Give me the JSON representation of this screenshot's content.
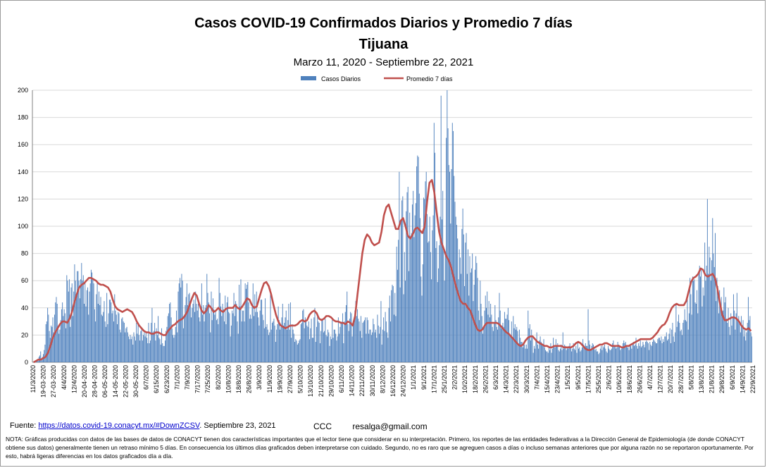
{
  "title": "Casos COVID-19 Confirmados Diarios y Promedio 7 días",
  "subtitle": "Tijuana",
  "date_range": "Marzo 11, 2020 - Septiembre  22, 2021",
  "footer": {
    "source_label": "Fuente:",
    "source_link": "https://datos.covid-19.conacyt.mx/#DownZCSV",
    "source_date": ". Septiembre 23, 2021",
    "author": "CCC",
    "email": "resalga@gmail.com",
    "note": "NOTA: Gráficas producidas con datos de las bases de datos de CONACYT tienen dos características importantes que el lector tiene que considerar en su interpretación. Primero, los reportes de las entidades federativas a la Dirección General de Epidemiología (de donde CONACYT obtiene sus datos) generalmente tienen un retraso mínimo 5 días. En consecuencia los últimos días graficados deben interpretarse con cuidado. Segundo, no es raro que se agreguen casos a días o incluso semanas anteriores que por alguna razón no se reportaron oportunamente. Por esto, habrá ligeras diferencias en los datos graficados día a día."
  },
  "chart_data": {
    "type": "bar+line",
    "x_start": "2020-03-11",
    "x_end": "2021-09-22",
    "ylim": [
      0,
      200
    ],
    "yticks": [
      0,
      20,
      40,
      60,
      80,
      100,
      120,
      140,
      160,
      180,
      200
    ],
    "xtick_labels": [
      "11/3/2020",
      "19-03-2020",
      "27-03-2020",
      "4/4/2020",
      "12/4/2020",
      "20-04-2020",
      "28-04-2020",
      "06-05-2020",
      "14-05-2020",
      "22-05-2020",
      "30-05-2020",
      "6/7/2020",
      "6/15/2020",
      "6/23/2020",
      "7/1/2020",
      "7/9/2020",
      "7/17/2020",
      "7/25/2020",
      "8/2/2020",
      "10/8/2020",
      "18/8/2020",
      "26/8/2020",
      "3/9/2020",
      "11/9/2020",
      "19/9/2020",
      "27/9/2020",
      "5/10/2020",
      "13/10/2020",
      "21/10/2020",
      "29/10/2020",
      "6/11/2020",
      "14/11/2020",
      "22/11/2020",
      "30/11/2020",
      "8/12/2020",
      "16/12/2020",
      "24/12/2020",
      "1/1/2021",
      "9/1/2021",
      "17/1/2021",
      "25/1/2021",
      "2/2/2021",
      "10/2/2021",
      "18/2/2021",
      "26/2/2021",
      "6/3/2021",
      "14/3/2021",
      "22/3/2021",
      "30/3/2021",
      "7/4/2021",
      "15/4/2021",
      "23/4/2021",
      "1/5/2021",
      "9/5/2021",
      "17/5/2021",
      "25/5/2021",
      "2/6/2021",
      "10/6/2021",
      "18/6/2021",
      "26/6/2021",
      "4/7/2021",
      "12/7/2021",
      "20/7/2021",
      "28/7/2021",
      "5/8/2021",
      "13/8/2021",
      "21/8/2021",
      "29/8/2021",
      "6/9/2021",
      "14/9/2021",
      "22/9/2021"
    ],
    "legend": [
      "Casos Diarios",
      "Promedio 7 días"
    ],
    "legend_position": "top-center",
    "colors": {
      "bars": "#4f81bd",
      "line": "#c0504d",
      "grid": "#d9d9d9"
    },
    "series": [
      {
        "name": "Promedio 7 días",
        "values": [
          0,
          1,
          2,
          2,
          3,
          4,
          7,
          12,
          18,
          22,
          25,
          28,
          30,
          30,
          29,
          32,
          37,
          44,
          50,
          55,
          57,
          58,
          60,
          62,
          62,
          61,
          60,
          58,
          57,
          57,
          56,
          55,
          52,
          46,
          41,
          39,
          38,
          37,
          38,
          39,
          38,
          37,
          34,
          30,
          27,
          25,
          23,
          22,
          22,
          21,
          21,
          22,
          22,
          21,
          20,
          20,
          23,
          25,
          27,
          28,
          30,
          31,
          32,
          34,
          37,
          42,
          47,
          51,
          49,
          43,
          38,
          36,
          38,
          42,
          40,
          37,
          38,
          40,
          38,
          37,
          39,
          40,
          40,
          40,
          42,
          40,
          39,
          41,
          44,
          47,
          46,
          42,
          40,
          41,
          47,
          53,
          58,
          59,
          56,
          50,
          42,
          35,
          30,
          27,
          26,
          25,
          26,
          27,
          27,
          27,
          28,
          30,
          31,
          30,
          31,
          35,
          37,
          38,
          36,
          32,
          31,
          32,
          34,
          34,
          33,
          31,
          30,
          30,
          29,
          29,
          28,
          30,
          29,
          27,
          34,
          50,
          65,
          80,
          90,
          94,
          92,
          88,
          86,
          87,
          88,
          96,
          108,
          114,
          116,
          110,
          104,
          98,
          98,
          104,
          106,
          100,
          93,
          91,
          94,
          98,
          99,
          97,
          95,
          100,
          118,
          132,
          134,
          125,
          110,
          96,
          88,
          83,
          78,
          75,
          70,
          63,
          56,
          50,
          45,
          43,
          43,
          40,
          38,
          33,
          28,
          24,
          23,
          24,
          27,
          29,
          29,
          29,
          29,
          29,
          28,
          26,
          24,
          22,
          21,
          19,
          17,
          15,
          13,
          12,
          13,
          16,
          18,
          19,
          19,
          17,
          15,
          14,
          13,
          12,
          12,
          11,
          11,
          12,
          12,
          12,
          12,
          11,
          11,
          11,
          11,
          12,
          14,
          15,
          14,
          12,
          10,
          9,
          9,
          10,
          11,
          12,
          13,
          13,
          14,
          14,
          13,
          12,
          12,
          12,
          12,
          11,
          11,
          12,
          12,
          13,
          14,
          15,
          16,
          17,
          17,
          17,
          17,
          17,
          18,
          20,
          22,
          25,
          27,
          28,
          31,
          36,
          40,
          42,
          43,
          42,
          42,
          42,
          45,
          52,
          59,
          62,
          63,
          65,
          69,
          68,
          64,
          63,
          64,
          65,
          62,
          54,
          44,
          35,
          31,
          31,
          32,
          33,
          33,
          32,
          30,
          27,
          25,
          24,
          25,
          23
        ]
      },
      {
        "name": "Casos Diarios",
        "values": [
          0,
          0,
          1,
          0,
          1,
          2,
          1,
          4,
          5,
          8,
          2,
          4,
          6,
          9,
          13,
          28,
          30,
          40,
          35,
          23,
          18,
          27,
          26,
          33,
          22,
          35,
          44,
          48,
          43,
          27,
          21,
          24,
          31,
          39,
          44,
          34,
          39,
          36,
          25,
          64,
          60,
          52,
          61,
          26,
          55,
          58,
          34,
          52,
          72,
          60,
          49,
          67,
          67,
          60,
          47,
          61,
          73,
          60,
          64,
          43,
          59,
          41,
          53,
          55,
          35,
          52,
          58,
          68,
          66,
          61,
          58,
          39,
          30,
          50,
          58,
          43,
          52,
          42,
          48,
          35,
          34,
          37,
          45,
          30,
          26,
          51,
          28,
          36,
          46,
          46,
          44,
          36,
          38,
          30,
          50,
          38,
          35,
          28,
          37,
          36,
          24,
          22,
          32,
          33,
          30,
          29,
          22,
          25,
          26,
          22,
          19,
          17,
          20,
          17,
          19,
          13,
          22,
          19,
          16,
          29,
          21,
          28,
          20,
          16,
          23,
          25,
          16,
          20,
          22,
          19,
          22,
          18,
          14,
          29,
          14,
          16,
          29,
          40,
          22,
          23,
          29,
          16,
          25,
          20,
          34,
          18,
          17,
          13,
          25,
          14,
          12,
          12,
          16,
          23,
          26,
          34,
          36,
          43,
          44,
          33,
          25,
          20,
          18,
          20,
          26,
          38,
          22,
          52,
          58,
          62,
          55,
          65,
          60,
          25,
          35,
          42,
          48,
          58,
          42,
          50,
          51,
          45,
          33,
          40,
          43,
          46,
          37,
          52,
          43,
          38,
          43,
          33,
          30,
          40,
          58,
          35,
          42,
          30,
          40,
          42,
          65,
          51,
          44,
          36,
          22,
          52,
          31,
          47,
          39,
          35,
          38,
          31,
          32,
          28,
          62,
          51,
          41,
          34,
          43,
          39,
          30,
          49,
          28,
          44,
          48,
          37,
          36,
          19,
          27,
          38,
          36,
          51,
          34,
          45,
          43,
          30,
          21,
          57,
          41,
          61,
          30,
          38,
          38,
          30,
          58,
          54,
          57,
          59,
          44,
          32,
          35,
          32,
          41,
          58,
          34,
          50,
          37,
          52,
          37,
          33,
          27,
          38,
          46,
          46,
          35,
          31,
          25,
          47,
          26,
          28,
          24,
          20,
          22,
          54,
          24,
          29,
          30,
          32,
          27,
          15,
          24,
          28,
          41,
          31,
          24,
          26,
          33,
          43,
          27,
          29,
          33,
          38,
          24,
          31,
          43,
          24,
          44,
          18,
          28,
          24,
          21,
          15,
          17,
          16,
          13,
          14,
          16,
          17,
          28,
          29,
          38,
          39,
          25,
          33,
          31,
          27,
          26,
          30,
          17,
          25,
          32,
          18,
          18,
          33,
          40,
          15,
          26,
          34,
          30,
          29,
          14,
          23,
          32,
          32,
          22,
          23,
          32,
          20,
          19,
          24,
          22,
          12,
          19,
          17,
          31,
          18,
          24,
          24,
          21,
          16,
          19,
          33,
          21,
          26,
          30,
          29,
          36,
          14,
          30,
          37,
          42,
          52,
          28,
          23,
          32,
          37,
          36,
          19,
          28,
          29,
          38,
          45,
          34,
          39,
          32,
          30,
          23,
          34,
          18,
          29,
          30,
          31,
          33,
          21,
          33,
          31,
          21,
          24,
          24,
          20,
          22,
          32,
          28,
          22,
          24,
          18,
          35,
          27,
          21,
          26,
          45,
          13,
          24,
          33,
          23,
          37,
          30,
          22,
          18,
          40,
          49,
          30,
          53,
          57,
          56,
          35,
          51,
          34,
          85,
          68,
          90,
          140,
          55,
          105,
          119,
          122,
          50,
          81,
          60,
          111,
          125,
          129,
          67,
          110,
          93,
          95,
          116,
          126,
          92,
          108,
          117,
          144,
          152,
          151,
          124,
          106,
          63,
          49,
          72,
          121,
          120,
          133,
          140,
          109,
          88,
          89,
          107,
          81,
          61,
          97,
          108,
          176,
          154,
          84,
          89,
          59,
          69,
          86,
          107,
          196,
          105,
          126,
          82,
          60,
          81,
          165,
          200,
          172,
          145,
          140,
          102,
          142,
          176,
          170,
          137,
          118,
          107,
          101,
          91,
          61,
          83,
          77,
          65,
          98,
          113,
          94,
          56,
          88,
          95,
          65,
          83,
          49,
          78,
          66,
          69,
          80,
          45,
          57,
          68,
          78,
          73,
          62,
          38,
          31,
          60,
          43,
          34,
          21,
          26,
          38,
          49,
          40,
          52,
          35,
          45,
          33,
          43,
          35,
          26,
          23,
          29,
          42,
          31,
          26,
          24,
          33,
          51,
          38,
          25,
          27,
          29,
          26,
          37,
          32,
          32,
          35,
          40,
          31,
          21,
          20,
          30,
          17,
          34,
          25,
          28,
          24,
          26,
          23,
          14,
          24,
          18,
          15,
          15,
          11,
          14,
          13,
          10,
          13,
          10,
          38,
          25,
          28,
          16,
          24,
          18,
          7,
          12,
          10,
          16,
          22,
          13,
          10,
          16,
          19,
          15,
          14,
          12,
          17,
          11,
          9,
          8,
          8,
          7,
          11,
          9,
          14,
          7,
          10,
          18,
          12,
          11,
          17,
          12,
          14,
          9,
          8,
          10,
          13,
          9,
          22,
          10,
          13,
          12,
          9,
          11,
          10,
          12,
          14,
          11,
          8,
          10,
          14,
          10,
          9,
          12,
          7,
          14,
          10,
          11,
          8,
          9,
          11,
          17,
          13,
          12,
          14,
          12,
          12,
          39,
          16,
          13,
          9,
          12,
          14,
          13,
          10,
          9,
          10,
          8,
          8,
          6,
          7,
          10,
          12,
          9,
          12,
          11,
          13,
          10,
          8,
          7,
          12,
          10,
          9,
          9,
          10,
          14,
          16,
          12,
          12,
          10,
          11,
          15,
          13,
          12,
          9,
          10,
          11,
          14,
          16,
          14,
          15,
          12,
          11,
          11,
          9,
          13,
          12,
          10,
          14,
          15,
          12,
          13,
          18,
          12,
          10,
          14,
          12,
          16,
          11,
          12,
          15,
          13,
          11,
          15,
          16,
          15,
          14,
          9,
          15,
          13,
          12,
          15,
          17,
          16,
          15,
          14,
          14,
          17,
          18,
          18,
          16,
          19,
          14,
          17,
          15,
          19,
          19,
          22,
          16,
          17,
          21,
          25,
          14,
          24,
          29,
          19,
          15,
          22,
          42,
          26,
          30,
          35,
          29,
          23,
          24,
          20,
          29,
          31,
          39,
          31,
          30,
          47,
          24,
          36,
          62,
          50,
          35,
          63,
          60,
          61,
          44,
          43,
          53,
          36,
          66,
          71,
          63,
          68,
          41,
          55,
          49,
          88,
          60,
          71,
          120,
          65,
          85,
          77,
          60,
          75,
          106,
          80,
          70,
          95,
          45,
          62,
          56,
          36,
          53,
          43,
          48,
          34,
          38,
          55,
          44,
          48,
          32,
          29,
          40,
          26,
          20,
          36,
          27,
          33,
          50,
          38,
          24,
          36,
          51,
          30,
          34,
          28,
          22,
          34,
          27,
          31,
          19,
          25,
          16,
          22,
          29,
          48,
          31,
          34,
          22,
          19
        ]
      }
    ]
  }
}
